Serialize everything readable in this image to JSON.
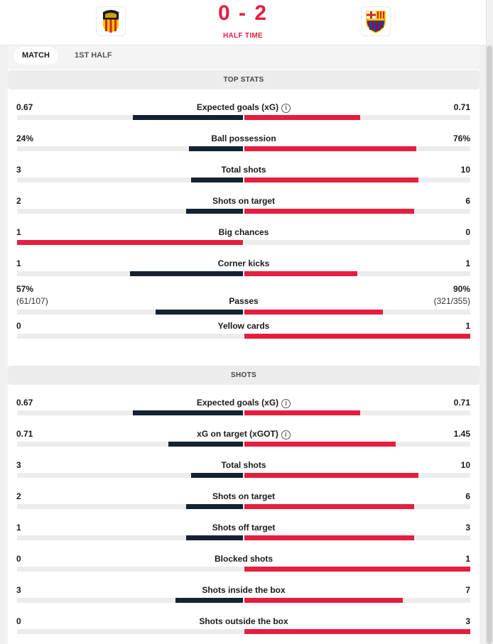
{
  "header": {
    "score": "0 - 2",
    "status": "HALF TIME",
    "home_logo": "valencia-crest",
    "away_logo": "barcelona-crest"
  },
  "tabs": [
    {
      "label": "MATCH",
      "active": true
    },
    {
      "label": "1ST HALF",
      "active": false
    }
  ],
  "colors": {
    "home": "#152233",
    "away": "#e51d3f",
    "track": "#ececec"
  },
  "sections": [
    {
      "title": "TOP STATS",
      "stats": [
        {
          "name": "Expected goals (xG)",
          "home": "0.67",
          "away": "0.71",
          "home_share": 0.486,
          "away_share": 0.514,
          "info": true
        },
        {
          "name": "Ball possession",
          "home": "24%",
          "away": "76%",
          "home_share": 0.24,
          "away_share": 0.76
        },
        {
          "name": "Total shots",
          "home": "3",
          "away": "10",
          "home_share": 0.231,
          "away_share": 0.769
        },
        {
          "name": "Shots on target",
          "home": "2",
          "away": "6",
          "home_share": 0.25,
          "away_share": 0.75
        },
        {
          "name": "Big chances",
          "home": "1",
          "away": "0",
          "home_share": 1.0,
          "away_share": 0.0,
          "away_winner": false,
          "home_winner": true
        },
        {
          "name": "Corner kicks",
          "home": "1",
          "away": "1",
          "home_share": 0.5,
          "away_share": 0.5,
          "tie": true
        },
        {
          "name": "Passes",
          "home": "57%",
          "away": "90%",
          "home_sub": "(61/107)",
          "away_sub": "(321/355)",
          "home_share": 0.387,
          "away_share": 0.613
        },
        {
          "name": "Yellow cards",
          "home": "0",
          "away": "1",
          "home_share": 0.0,
          "away_share": 1.0
        }
      ]
    },
    {
      "title": "SHOTS",
      "stats": [
        {
          "name": "Expected goals (xG)",
          "home": "0.67",
          "away": "0.71",
          "home_share": 0.486,
          "away_share": 0.514,
          "info": true
        },
        {
          "name": "xG on target (xGOT)",
          "home": "0.71",
          "away": "1.45",
          "home_share": 0.329,
          "away_share": 0.671,
          "info": true
        },
        {
          "name": "Total shots",
          "home": "3",
          "away": "10",
          "home_share": 0.231,
          "away_share": 0.769
        },
        {
          "name": "Shots on target",
          "home": "2",
          "away": "6",
          "home_share": 0.25,
          "away_share": 0.75
        },
        {
          "name": "Shots off target",
          "home": "1",
          "away": "3",
          "home_share": 0.25,
          "away_share": 0.75
        },
        {
          "name": "Blocked shots",
          "home": "0",
          "away": "1",
          "home_share": 0.0,
          "away_share": 1.0
        },
        {
          "name": "Shots inside the box",
          "home": "3",
          "away": "7",
          "home_share": 0.3,
          "away_share": 0.7
        },
        {
          "name": "Shots outside the box",
          "home": "0",
          "away": "3",
          "home_share": 0.0,
          "away_share": 1.0
        }
      ]
    }
  ]
}
